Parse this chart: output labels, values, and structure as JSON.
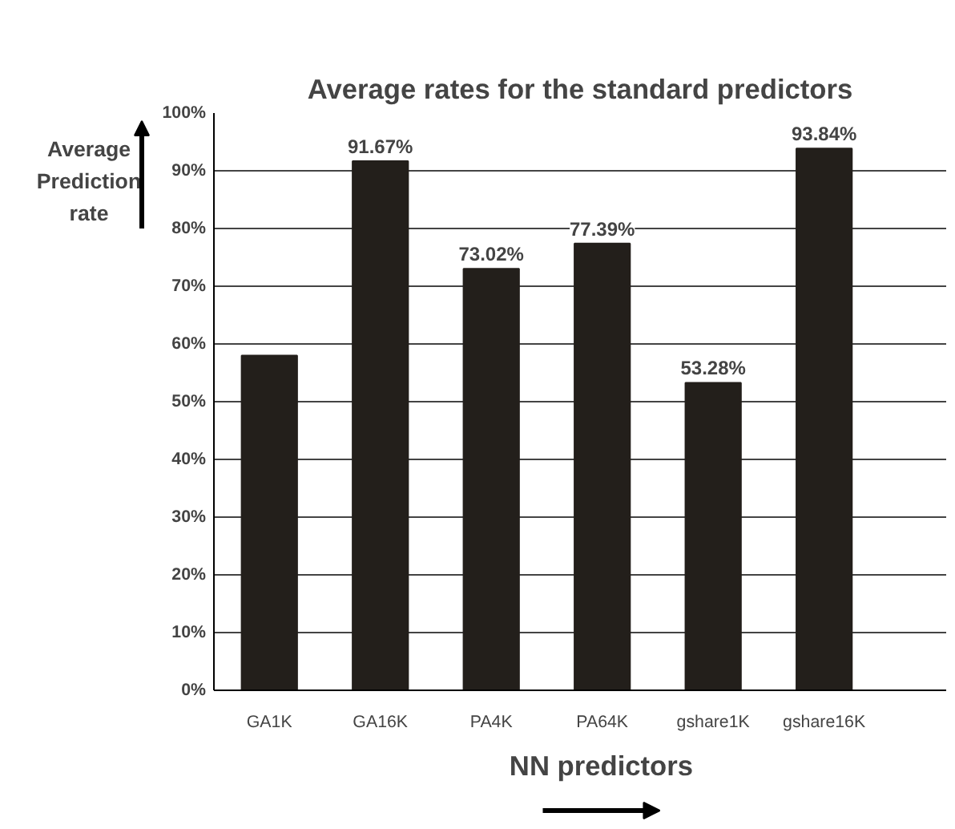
{
  "chart_data": {
    "type": "bar",
    "title": "Average rates for the standard predictors",
    "xlabel": "NN predictors",
    "ylabel": "Average Prediction rate",
    "categories": [
      "GA1K",
      "GA16K",
      "PA4K",
      "PA64K",
      "gshare1K",
      "gshare16K"
    ],
    "values": [
      58,
      91.67,
      73.02,
      77.39,
      53.28,
      93.84
    ],
    "value_labels": [
      null,
      "91.67%",
      "73.02%",
      "77.39%",
      "53.28%",
      "93.84%"
    ],
    "color": "#231f1b",
    "ylim": [
      0,
      100
    ],
    "yticks": [
      {
        "value": 0,
        "label": "0%"
      },
      {
        "value": 10,
        "label": "10%"
      },
      {
        "value": 20,
        "label": "20%"
      },
      {
        "value": 30,
        "label": "30%"
      },
      {
        "value": 40,
        "label": "40%"
      },
      {
        "value": 50,
        "label": "50%"
      },
      {
        "value": 60,
        "label": "60%"
      },
      {
        "value": 70,
        "label": "70%"
      },
      {
        "value": 80,
        "label": "80%"
      },
      {
        "value": 90,
        "label": "90%"
      },
      {
        "value": 100,
        "label": "100%"
      }
    ],
    "grid": "y"
  }
}
